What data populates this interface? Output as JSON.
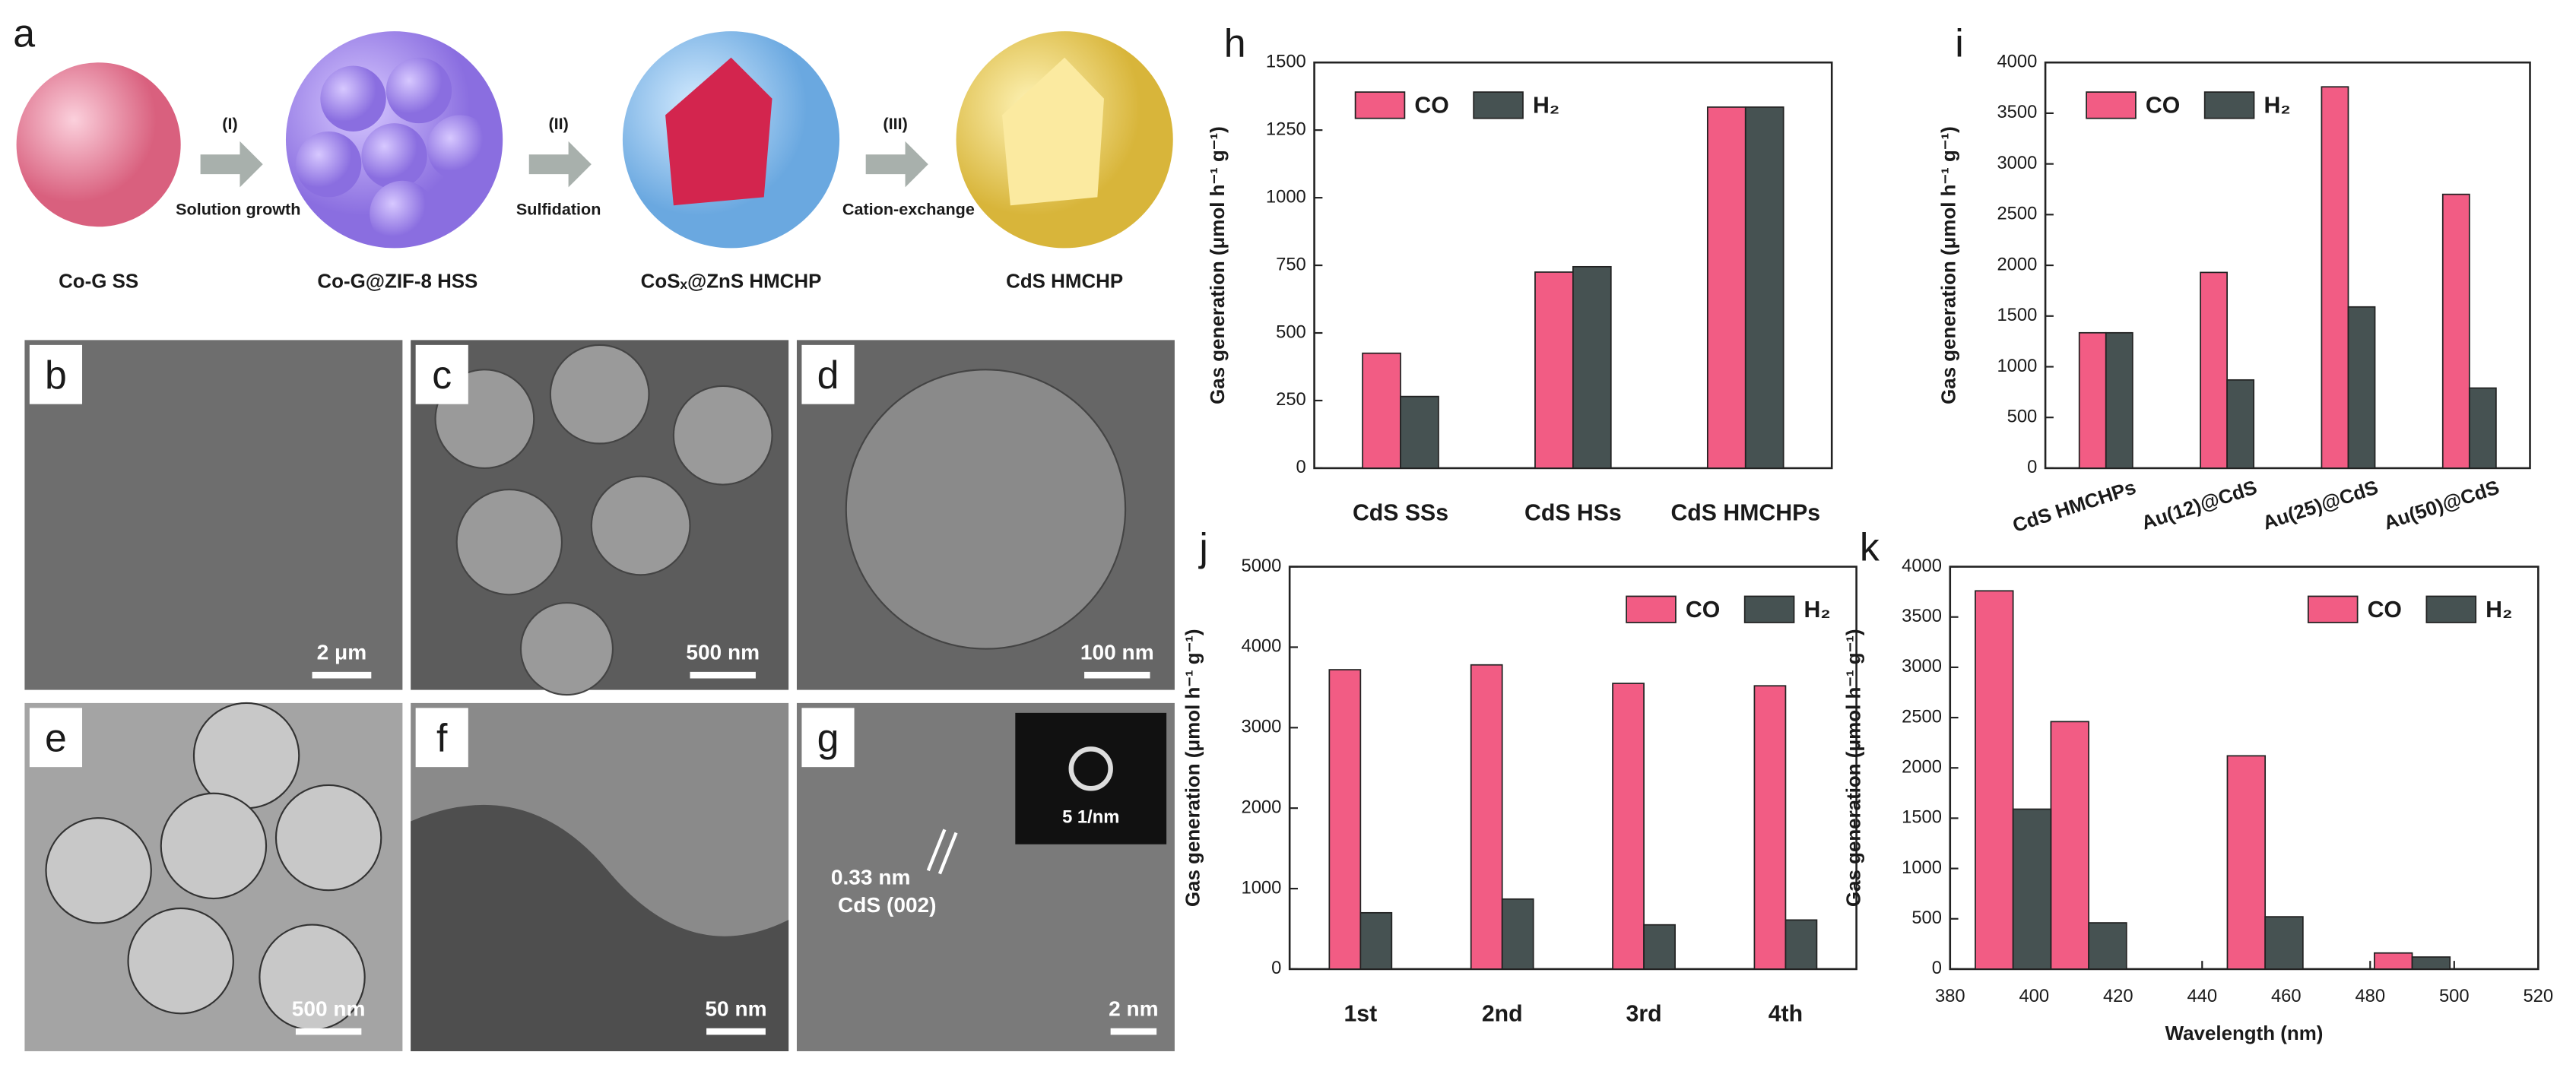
{
  "schematic": {
    "panel_label": "a",
    "steps": [
      {
        "number": "(I)",
        "process": "Solution growth"
      },
      {
        "number": "(II)",
        "process": "Sulfidation"
      },
      {
        "number": "(III)",
        "process": "Cation-exchange"
      }
    ],
    "products": [
      "Co-G SS",
      "Co-G@ZIF-8 HSS",
      "CoSₓ@ZnS HMCHP",
      "CdS HMCHP"
    ]
  },
  "micrographs": [
    {
      "panel_label": "b",
      "scale_bar": "2 μm"
    },
    {
      "panel_label": "c",
      "scale_bar": "500 nm"
    },
    {
      "panel_label": "d",
      "scale_bar": "100 nm"
    },
    {
      "panel_label": "e",
      "scale_bar": "500 nm"
    },
    {
      "panel_label": "f",
      "scale_bar": "50 nm"
    },
    {
      "panel_label": "g",
      "scale_bar": "2 nm",
      "annotations": [
        "0.33 nm",
        "CdS (002)",
        "5 1/nm"
      ]
    }
  ],
  "chart_data": [
    {
      "type": "bar",
      "panel_label": "h",
      "ylabel": "Gas generation (μmol h⁻¹ g⁻¹)",
      "categories": [
        "CdS SSs",
        "CdS HSs",
        "CdS HMCHPs"
      ],
      "series": [
        {
          "name": "CO",
          "color": "#f25c84",
          "values": [
            425,
            725,
            1335
          ]
        },
        {
          "name": "H₂",
          "color": "#465252",
          "values": [
            265,
            745,
            1335
          ]
        }
      ],
      "ylim": [
        0,
        1500
      ],
      "yticks": [
        0,
        250,
        500,
        750,
        1000,
        1250,
        1500
      ],
      "legend": "upper left"
    },
    {
      "type": "bar",
      "panel_label": "i",
      "ylabel": "Gas generation (μmol h⁻¹ g⁻¹)",
      "categories": [
        "CdS HMCHPs",
        "Au(12)@CdS",
        "Au(25)@CdS",
        "Au(50)@CdS"
      ],
      "series": [
        {
          "name": "CO",
          "color": "#f25c84",
          "values": [
            1335,
            1930,
            3760,
            2700
          ]
        },
        {
          "name": "H₂",
          "color": "#465252",
          "values": [
            1335,
            870,
            1590,
            790
          ]
        }
      ],
      "ylim": [
        0,
        4000
      ],
      "yticks": [
        0,
        500,
        1000,
        1500,
        2000,
        2500,
        3000,
        3500,
        4000
      ],
      "legend": "upper left"
    },
    {
      "type": "bar",
      "panel_label": "j",
      "ylabel": "Gas generation (μmol h⁻¹ g⁻¹)",
      "categories": [
        "1st",
        "2nd",
        "3rd",
        "4th"
      ],
      "series": [
        {
          "name": "CO",
          "color": "#f25c84",
          "values": [
            3720,
            3780,
            3550,
            3520
          ]
        },
        {
          "name": "H₂",
          "color": "#465252",
          "values": [
            700,
            870,
            550,
            610
          ]
        }
      ],
      "ylim": [
        0,
        5000
      ],
      "yticks": [
        0,
        1000,
        2000,
        3000,
        4000,
        5000
      ],
      "legend": "upper right"
    },
    {
      "type": "bar",
      "panel_label": "k",
      "ylabel": "Gas generation (μmol h⁻¹ g⁻¹)",
      "xlabel": "Wavelength (nm)",
      "x": [
        395,
        413,
        455,
        490
      ],
      "series": [
        {
          "name": "CO",
          "color": "#f25c84",
          "values": [
            3760,
            2460,
            2120,
            160
          ]
        },
        {
          "name": "H₂",
          "color": "#465252",
          "values": [
            1590,
            460,
            520,
            120
          ]
        }
      ],
      "xlim": [
        380,
        520
      ],
      "xticks": [
        380,
        400,
        420,
        440,
        460,
        480,
        500,
        520
      ],
      "ylim": [
        0,
        4000
      ],
      "yticks": [
        0,
        500,
        1000,
        1500,
        2000,
        2500,
        3000,
        3500,
        4000
      ],
      "legend": "upper right"
    }
  ]
}
